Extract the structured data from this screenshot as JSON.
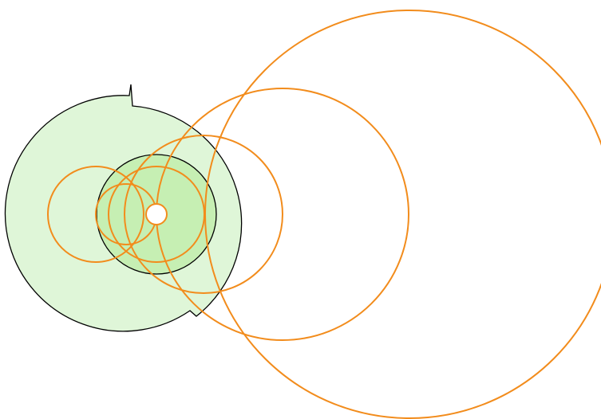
{
  "diagram": {
    "type": "geometric-figure",
    "background": "#ffffff",
    "colors": {
      "outer_region_fill": "#dff6d8",
      "inner_disk_fill": "#c6efb3",
      "region_stroke": "#000000",
      "circle_stroke": "#f28c1c",
      "center_hole_fill": "#ffffff"
    },
    "shapes": [
      {
        "kind": "notched-disk",
        "name": "outer-green-region"
      },
      {
        "kind": "disk",
        "name": "inner-green-disk"
      },
      {
        "kind": "circle",
        "name": "orange-circle-1"
      },
      {
        "kind": "circle",
        "name": "orange-circle-2"
      },
      {
        "kind": "circle",
        "name": "orange-circle-3"
      },
      {
        "kind": "circle",
        "name": "orange-circle-4"
      },
      {
        "kind": "circle",
        "name": "orange-circle-5"
      },
      {
        "kind": "circle",
        "name": "orange-circle-6"
      },
      {
        "kind": "circle",
        "name": "center-hole"
      }
    ]
  }
}
